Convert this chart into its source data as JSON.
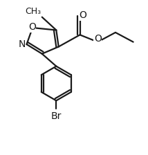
{
  "bg_color": "#ffffff",
  "line_color": "#1a1a1a",
  "line_width": 1.6,
  "font_size_label": 10,
  "figsize": [
    2.14,
    2.24
  ],
  "dpi": 100,
  "xlim": [
    -0.15,
    1.05
  ],
  "ylim": [
    -0.55,
    0.75
  ]
}
